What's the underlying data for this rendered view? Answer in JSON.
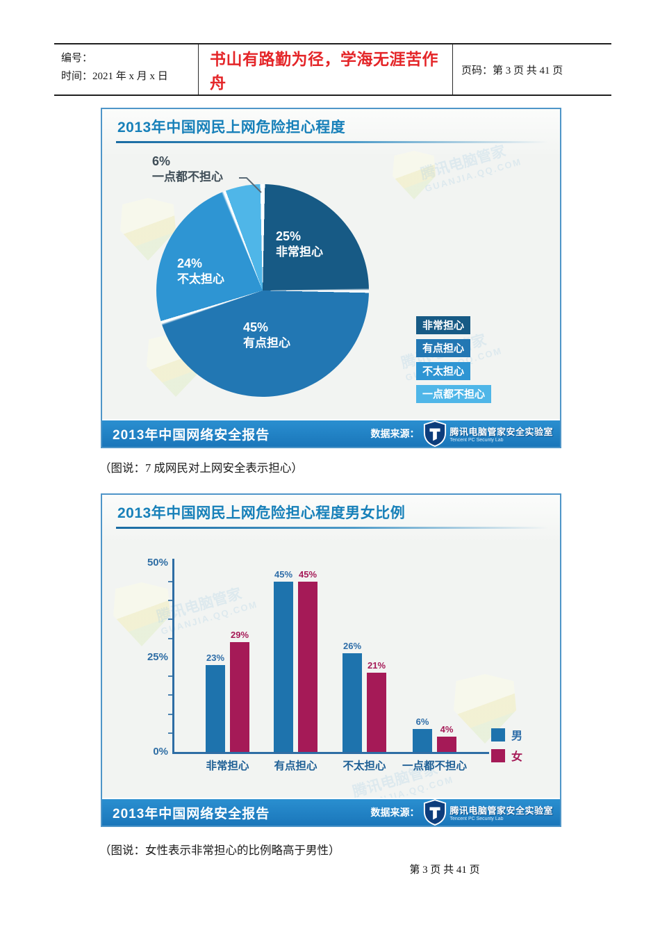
{
  "page": {
    "header": {
      "label_no": "编号：",
      "label_time": "时间：2021 年 x 月 x 日",
      "motto": "书山有路勤为径，学海无涯苦作舟",
      "label_page": "页码：第 3 页  共 41 页"
    },
    "captions": [
      "（图说：7 成网民对上网安全表示担心）",
      "（图说：女性表示非常担心的比例略高于男性）"
    ],
    "page_footer": "第 3 页 共 41 页",
    "watermark": {
      "line1": "腾讯电脑管家",
      "line2": "GUANJIA.QQ.COM"
    }
  },
  "chart_data": [
    {
      "type": "pie",
      "title": "2013年中国网民上网危险担心程度",
      "slices": [
        {
          "label": "非常担心",
          "value": 25,
          "color": "#175a85"
        },
        {
          "label": "有点担心",
          "value": 45,
          "color": "#2277b3"
        },
        {
          "label": "不太担心",
          "value": 24,
          "color": "#2e95d3"
        },
        {
          "label": "一点都不担心",
          "value": 6,
          "color": "#4fb6e8"
        }
      ],
      "legend_position": "right",
      "footer_left": "2013年中国网络安全报告",
      "source": {
        "label": "数据来源：",
        "name": "腾讯电脑管家安全实验室",
        "sub": "Tencent PC Security Lab"
      }
    },
    {
      "type": "bar",
      "title": "2013年中国网民上网危险担心程度男女比例",
      "categories": [
        "非常担心",
        "有点担心",
        "不太担心",
        "一点都不担心"
      ],
      "series": [
        {
          "name": "男",
          "color": "#1e73ad",
          "label_color": "#2e6da8",
          "values": [
            23,
            45,
            26,
            6
          ]
        },
        {
          "name": "女",
          "color": "#a51a57",
          "label_color": "#a51a57",
          "values": [
            29,
            45,
            21,
            4
          ]
        }
      ],
      "xlabel": "",
      "ylabel": "",
      "ylim": [
        0,
        55
      ],
      "yticks": [
        {
          "label": "50%",
          "value": 50
        },
        {
          "label": "25%",
          "value": 25
        },
        {
          "label": "0%",
          "value": 0
        }
      ],
      "grid": false,
      "legend_position": "right-bottom",
      "footer_left": "2013年中国网络安全报告",
      "source": {
        "label": "数据来源：",
        "name": "腾讯电脑管家安全实验室",
        "sub": "Tencent PC Security Lab"
      }
    }
  ]
}
